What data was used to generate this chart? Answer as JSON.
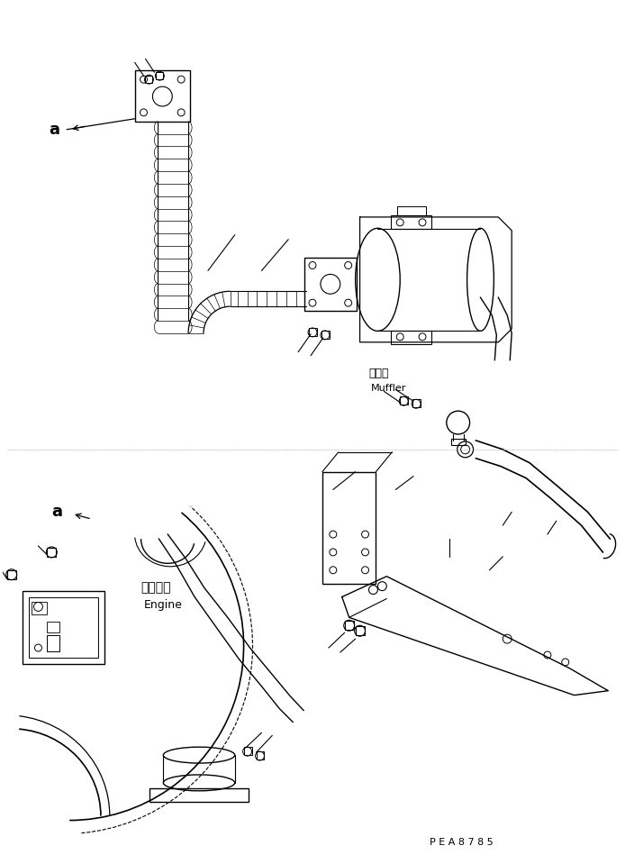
{
  "bg_color": "#ffffff",
  "line_color": "#000000",
  "fig_width": 6.94,
  "fig_height": 9.59,
  "dpi": 100,
  "muffler_label_jp": "マフラ",
  "muffler_label_en": "Muffler",
  "engine_label_jp": "エンジン",
  "engine_label_en": "Engine",
  "pea_code": "P E A 8 7 8 5",
  "font_size_labels": 9,
  "font_size_code": 8
}
